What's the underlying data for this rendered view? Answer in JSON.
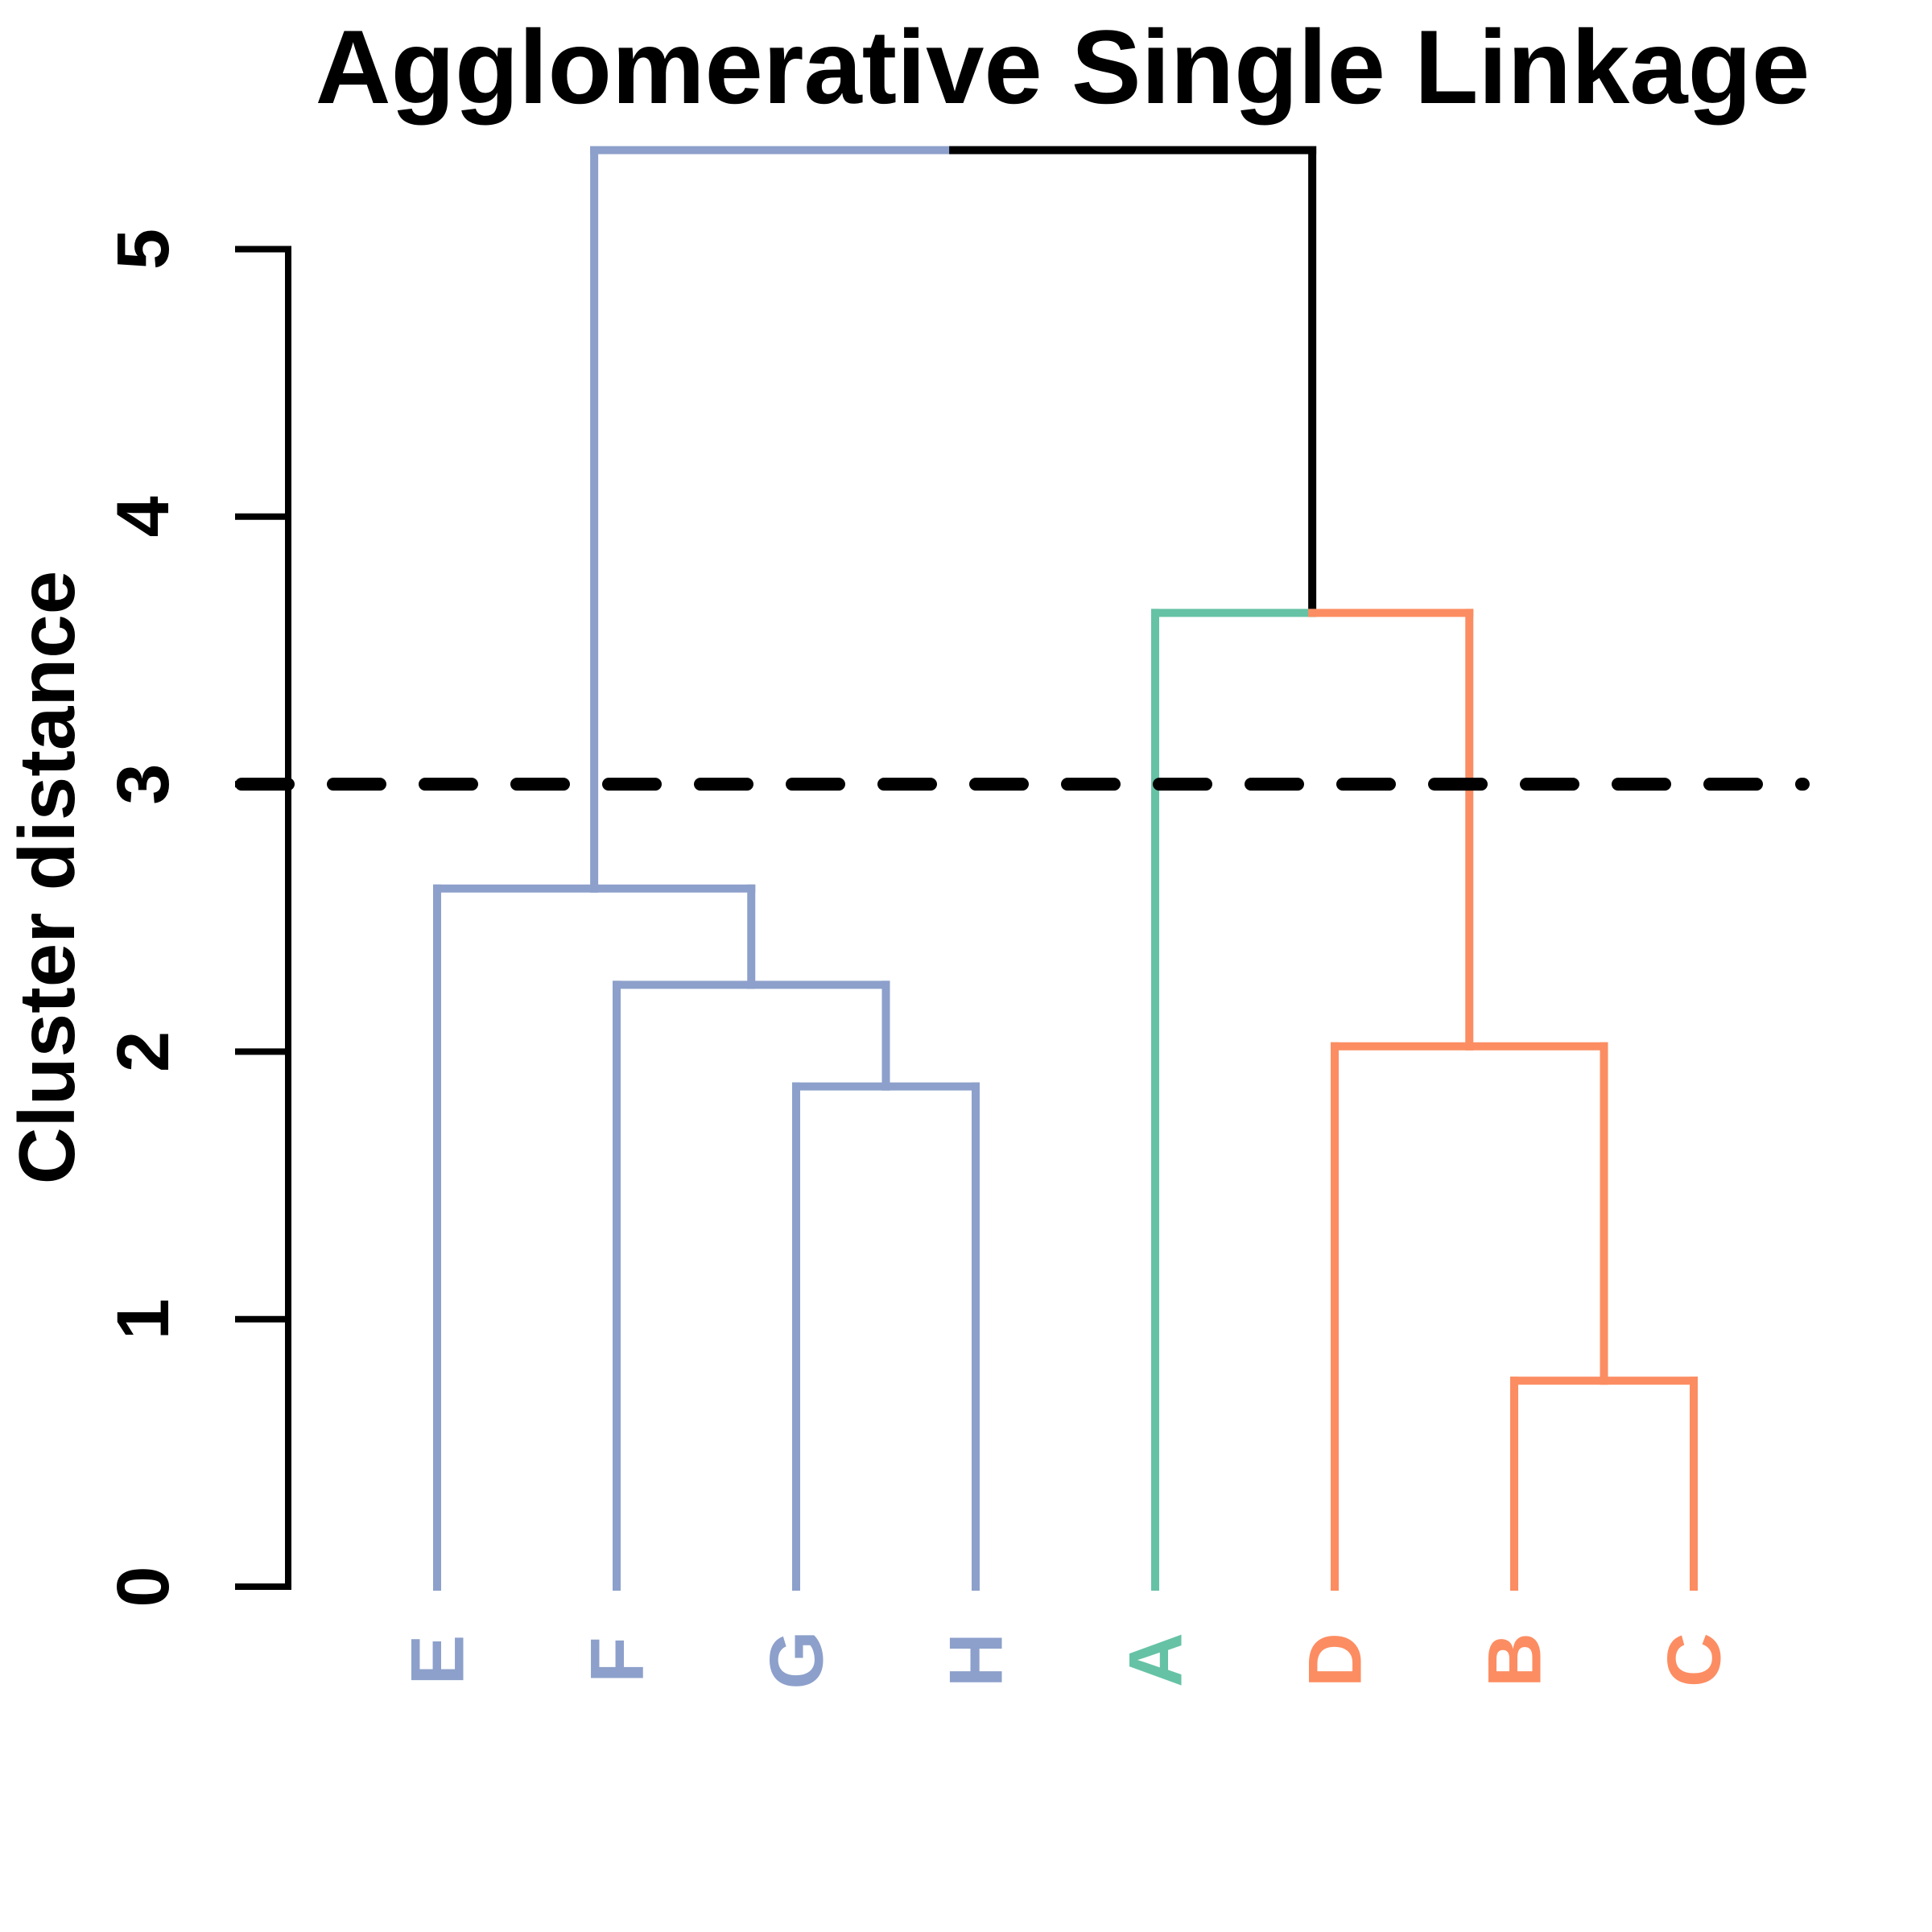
{
  "title": "Agglomerative Single Linkage",
  "y_axis": {
    "label": "Cluster distance",
    "ticks": [
      "0",
      "1",
      "2",
      "3",
      "4",
      "5"
    ]
  },
  "chart_data": {
    "type": "dendrogram",
    "orientation": "vertical",
    "title": "Agglomerative Single Linkage",
    "ylabel": "Cluster distance",
    "ylim": [
      0,
      5.4
    ],
    "yticks": [
      0,
      1,
      2,
      3,
      4,
      5
    ],
    "grid": false,
    "leaf_order": [
      "E",
      "F",
      "G",
      "H",
      "A",
      "D",
      "B",
      "C"
    ],
    "clusters": {
      "E": "blue",
      "F": "blue",
      "G": "blue",
      "H": "blue",
      "A": "green",
      "D": "orange",
      "B": "orange",
      "C": "orange"
    },
    "cluster_colors": {
      "blue": "#8DA0CB",
      "green": "#66C2A5",
      "orange": "#FC8D62",
      "mixed": "#000000"
    },
    "merges": [
      {
        "join": [
          "B",
          "C"
        ],
        "height": 0.77
      },
      {
        "join": [
          "G",
          "H"
        ],
        "height": 1.87
      },
      {
        "join": [
          "D",
          "(B,C)"
        ],
        "height": 2.02
      },
      {
        "join": [
          "F",
          "(G,H)"
        ],
        "height": 2.25
      },
      {
        "join": [
          "E",
          "(F,G,H)"
        ],
        "height": 2.61
      },
      {
        "join": [
          "A",
          "(D,B,C)"
        ],
        "height": 3.64
      },
      {
        "join": [
          "(E,F,G,H)",
          "(A,D,B,C)"
        ],
        "height": 5.37
      }
    ],
    "tree": {
      "height": 5.37,
      "children": [
        {
          "height": 2.61,
          "children": [
            {
              "leaf": "E"
            },
            {
              "height": 2.25,
              "children": [
                {
                  "leaf": "F"
                },
                {
                  "height": 1.87,
                  "children": [
                    {
                      "leaf": "G"
                    },
                    {
                      "leaf": "H"
                    }
                  ]
                }
              ]
            }
          ]
        },
        {
          "height": 3.64,
          "children": [
            {
              "leaf": "A"
            },
            {
              "height": 2.02,
              "children": [
                {
                  "leaf": "D"
                },
                {
                  "height": 0.77,
                  "children": [
                    {
                      "leaf": "B"
                    },
                    {
                      "leaf": "C"
                    }
                  ]
                }
              ]
            }
          ]
        }
      ]
    },
    "cut_line": {
      "height": 3,
      "style": "dashed",
      "color": "#000000"
    }
  }
}
